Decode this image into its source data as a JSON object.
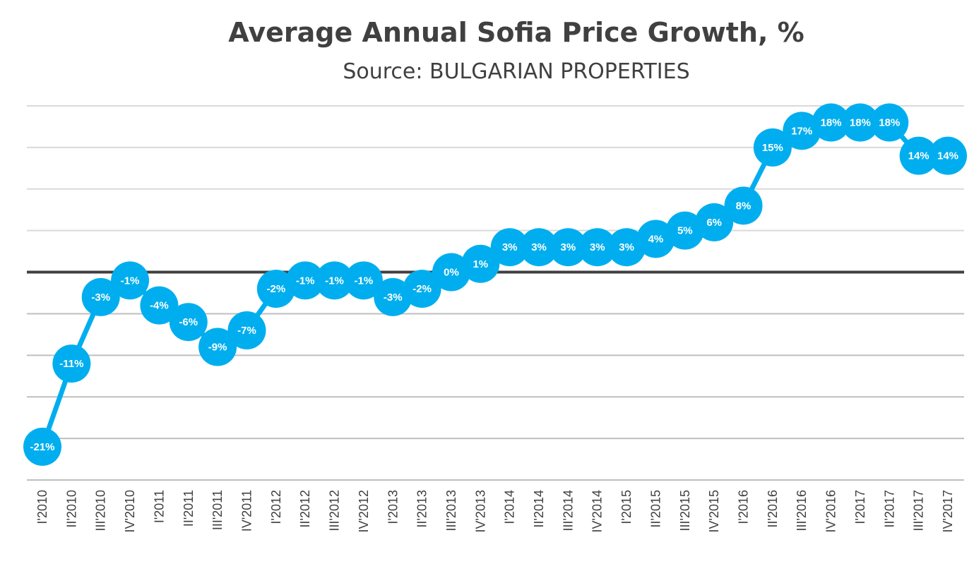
{
  "chart_data": {
    "type": "line",
    "title": "Average Annual Sofia Price Growth, %",
    "subtitle": "Source: BULGARIAN PROPERTIES",
    "categories": [
      "I'2010",
      "II'2010",
      "III'2010",
      "IV'2010",
      "I'2011",
      "II'2011",
      "III'2011",
      "IV'2011",
      "I'2012",
      "II'2012",
      "III'2012",
      "IV'2012",
      "I'2013",
      "II'2013",
      "III'2013",
      "IV'2013",
      "I'2014",
      "II'2014",
      "III'2014",
      "IV'2014",
      "I'2015",
      "II'2015",
      "III'2015",
      "IV'2015",
      "I'2016",
      "II'2016",
      "III'2016",
      "IV'2016",
      "I'2017",
      "II'2017",
      "III'2017",
      "IV'2017"
    ],
    "values": [
      -21,
      -11,
      -3,
      -1,
      -4,
      -6,
      -9,
      -7,
      -2,
      -1,
      -1,
      -1,
      -3,
      -2,
      0,
      1,
      3,
      3,
      3,
      3,
      3,
      4,
      5,
      6,
      8,
      15,
      17,
      18,
      18,
      18,
      14,
      14
    ],
    "data_labels": [
      "-21%",
      "-11%",
      "-3%",
      "-1%",
      "-4%",
      "-6%",
      "-9%",
      "-7%",
      "-2%",
      "-1%",
      "-1%",
      "-1%",
      "-3%",
      "-2%",
      "0%",
      "1%",
      "3%",
      "3%",
      "3%",
      "3%",
      "3%",
      "4%",
      "5%",
      "6%",
      "8%",
      "15%",
      "17%",
      "18%",
      "18%",
      "18%",
      "14%",
      "14%"
    ],
    "ylim": [
      -25,
      20
    ],
    "grid_step": 5,
    "grid": true,
    "y_tick_labels_shown": false,
    "legend": "none",
    "colors": {
      "series": "#00AEEF",
      "zero_line": "#404040",
      "grid": "#d9d9d9",
      "grid_below": "#bfbfbf"
    }
  }
}
